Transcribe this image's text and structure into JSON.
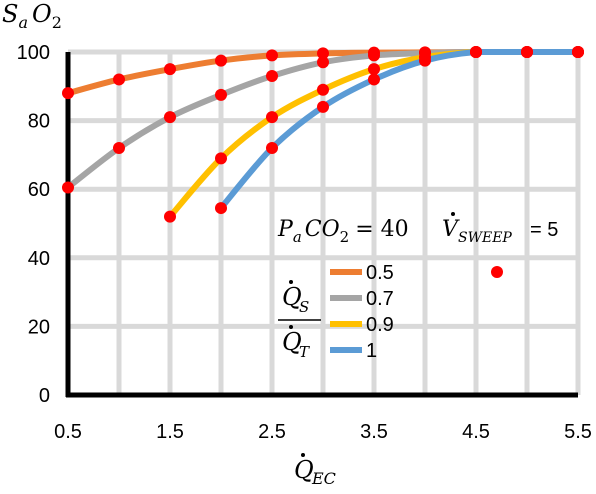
{
  "chart_data": {
    "type": "line",
    "title": "",
    "ylabel": "S_aO_2",
    "xlabel": "Q̇_EC",
    "xlim": [
      0.5,
      5.5
    ],
    "ylim": [
      0,
      100
    ],
    "x_ticks": [
      "0.5",
      "1.5",
      "2.5",
      "3.5",
      "4.5",
      "5.5"
    ],
    "y_ticks": [
      "0",
      "20",
      "40",
      "60",
      "80",
      "100"
    ],
    "grid": true,
    "marker_color": "#ff0000",
    "annotations": {
      "paco2": "P_aCO_2 = 40",
      "vsweep": "V̇_SWEEP = 5"
    },
    "legend": {
      "title": "Q̇_S / Q̇_T",
      "placement": "center-right"
    },
    "series": [
      {
        "name": "0.5",
        "color": "#ed7d31",
        "x": [
          0.5,
          1.0,
          1.5,
          2.0,
          2.5,
          3.0,
          3.5,
          4.0,
          4.5,
          5.0,
          5.5
        ],
        "y": [
          88,
          92,
          95,
          97.5,
          99,
          99.6,
          99.8,
          99.9,
          100,
          100,
          100
        ]
      },
      {
        "name": "0.7",
        "color": "#a5a5a5",
        "x": [
          0.5,
          1.0,
          1.5,
          2.0,
          2.5,
          3.0,
          3.5,
          4.0,
          4.5,
          5.0,
          5.5
        ],
        "y": [
          60.5,
          72,
          81,
          87.5,
          93,
          97,
          99,
          99.7,
          100,
          100,
          100
        ]
      },
      {
        "name": "0.9",
        "color": "#ffc000",
        "x": [
          1.5,
          2.0,
          2.5,
          3.0,
          3.5,
          4.0,
          4.5,
          5.0,
          5.5
        ],
        "y": [
          52,
          69,
          81,
          89,
          95,
          98.5,
          100,
          100,
          100
        ]
      },
      {
        "name": "1",
        "color": "#5b9bd5",
        "x": [
          2.0,
          2.5,
          3.0,
          3.5,
          4.0,
          4.5,
          5.0,
          5.5
        ],
        "y": [
          54.5,
          72,
          84,
          92,
          97.5,
          100,
          100,
          100
        ]
      }
    ]
  }
}
